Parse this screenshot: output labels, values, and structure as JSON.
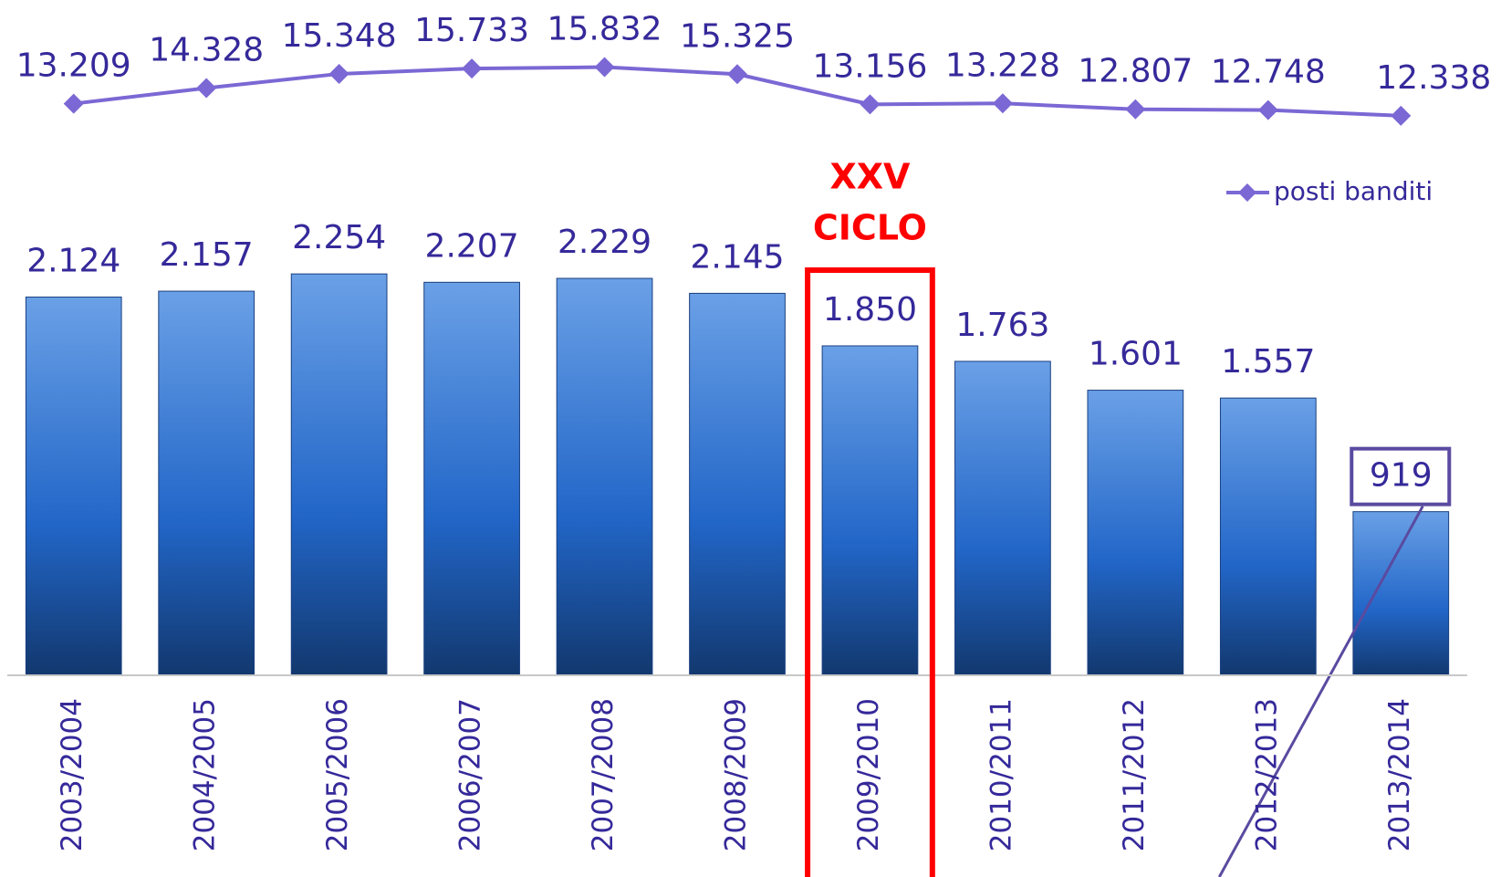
{
  "chart_data": {
    "type": "bar",
    "categories": [
      "2003/2004",
      "2004/2005",
      "2005/2006",
      "2006/2007",
      "2007/2008",
      "2008/2009",
      "2009/2010",
      "2010/2011",
      "2011/2012",
      "2012/2013",
      "2013/2014"
    ],
    "series": [
      {
        "type": "bar",
        "color": "#2266c8",
        "values": [
          2124,
          2157,
          2254,
          2207,
          2229,
          2145,
          1850,
          1763,
          1601,
          1557,
          919
        ],
        "value_labels": [
          "2.124",
          "2.157",
          "2.254",
          "2.207",
          "2.229",
          "2.145",
          "1.850",
          "1.763",
          "1.601",
          "1.557",
          "919"
        ]
      },
      {
        "type": "line",
        "name": "posti banditi",
        "color": "#7b68d4",
        "axis": "y2",
        "values": [
          13209,
          14328,
          15348,
          15733,
          15832,
          15325,
          13156,
          13228,
          12807,
          12748,
          12338
        ],
        "value_labels": [
          "13.209",
          "14.328",
          "15.348",
          "15.733",
          "15.832",
          "15.325",
          "13.156",
          "13.228",
          "12.807",
          "12.748",
          "12.338"
        ]
      }
    ],
    "ylim": [
      0,
      3500
    ],
    "y2lim": [
      12000,
      16000
    ],
    "legend": "upper right",
    "annotation": {
      "lines": [
        "XXV",
        "CICLO"
      ],
      "category_index": 6,
      "color": "#ff0000"
    },
    "boxed_label_index": 10
  }
}
